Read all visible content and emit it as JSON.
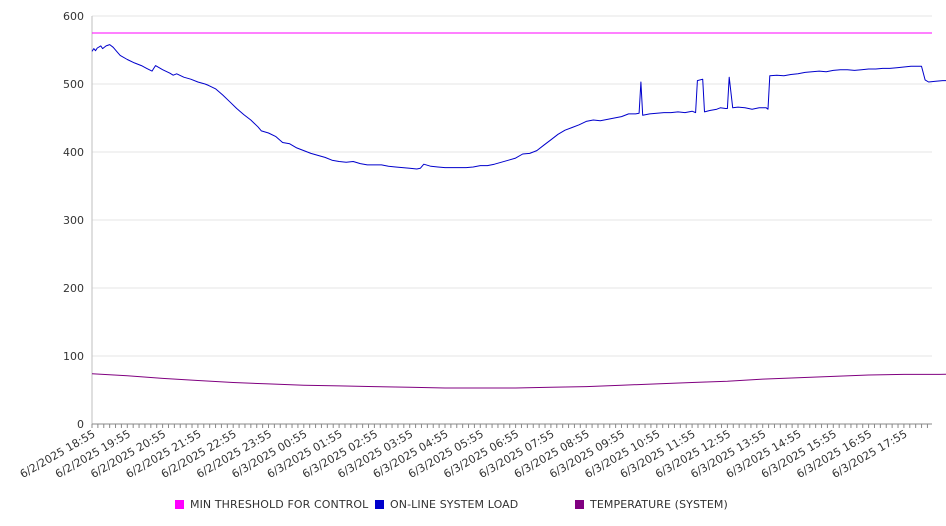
{
  "chart_data": {
    "type": "line",
    "title": "",
    "xlabel": "",
    "ylabel": "",
    "ylim": [
      0,
      600
    ],
    "yticks": [
      0,
      100,
      200,
      300,
      400,
      500,
      600
    ],
    "grid": "horizontal",
    "legend_position": "bottom",
    "x_tick_labels": [
      "6/2/2025 18:55",
      "6/2/2025 19:55",
      "6/2/2025 20:55",
      "6/2/2025 21:55",
      "6/2/2025 22:55",
      "6/2/2025 23:55",
      "6/3/2025 00:55",
      "6/3/2025 01:55",
      "6/3/2025 02:55",
      "6/3/2025 03:55",
      "6/3/2025 04:55",
      "6/3/2025 05:55",
      "6/3/2025 06:55",
      "6/3/2025 07:55",
      "6/3/2025 08:55",
      "6/3/2025 09:55",
      "6/3/2025 10:55",
      "6/3/2025 11:55",
      "6/3/2025 12:55",
      "6/3/2025 13:55",
      "6/3/2025 14:55",
      "6/3/2025 15:55",
      "6/3/2025 16:55",
      "6/3/2025 17:55"
    ],
    "series": [
      {
        "name": "MIN THRESHOLD FOR CONTROL",
        "color": "#ff00ff",
        "points": [
          [
            0,
            575
          ],
          [
            23.4,
            575
          ]
        ]
      },
      {
        "name": "ON-LINE SYSTEM LOAD",
        "color": "#0000cc",
        "points": [
          [
            0,
            548
          ],
          [
            0.05,
            552
          ],
          [
            0.1,
            549
          ],
          [
            0.15,
            553
          ],
          [
            0.25,
            556
          ],
          [
            0.3,
            552
          ],
          [
            0.4,
            556
          ],
          [
            0.5,
            558
          ],
          [
            0.6,
            554
          ],
          [
            0.7,
            548
          ],
          [
            0.8,
            542
          ],
          [
            1.0,
            536
          ],
          [
            1.2,
            531
          ],
          [
            1.4,
            527
          ],
          [
            1.55,
            523
          ],
          [
            1.7,
            519
          ],
          [
            1.8,
            527
          ],
          [
            2.0,
            521
          ],
          [
            2.2,
            516
          ],
          [
            2.3,
            513
          ],
          [
            2.4,
            515
          ],
          [
            2.6,
            510
          ],
          [
            2.8,
            507
          ],
          [
            3.0,
            503
          ],
          [
            3.2,
            500
          ],
          [
            3.3,
            498
          ],
          [
            3.5,
            493
          ],
          [
            3.7,
            484
          ],
          [
            3.9,
            474
          ],
          [
            4.1,
            464
          ],
          [
            4.3,
            455
          ],
          [
            4.5,
            447
          ],
          [
            4.7,
            437
          ],
          [
            4.8,
            431
          ],
          [
            5.0,
            428
          ],
          [
            5.2,
            423
          ],
          [
            5.4,
            414
          ],
          [
            5.6,
            412
          ],
          [
            5.8,
            406
          ],
          [
            6.0,
            402
          ],
          [
            6.2,
            398
          ],
          [
            6.4,
            395
          ],
          [
            6.6,
            392
          ],
          [
            6.8,
            388
          ],
          [
            7.0,
            386
          ],
          [
            7.2,
            385
          ],
          [
            7.4,
            386
          ],
          [
            7.6,
            383
          ],
          [
            7.8,
            381
          ],
          [
            8.0,
            381
          ],
          [
            8.2,
            381
          ],
          [
            8.4,
            379
          ],
          [
            8.6,
            378
          ],
          [
            8.8,
            377
          ],
          [
            9.0,
            376
          ],
          [
            9.2,
            375
          ],
          [
            9.3,
            376
          ],
          [
            9.4,
            382
          ],
          [
            9.6,
            379
          ],
          [
            9.8,
            378
          ],
          [
            10.0,
            377
          ],
          [
            10.2,
            377
          ],
          [
            10.4,
            377
          ],
          [
            10.6,
            377
          ],
          [
            10.8,
            378
          ],
          [
            11.0,
            380
          ],
          [
            11.2,
            380
          ],
          [
            11.4,
            382
          ],
          [
            11.6,
            385
          ],
          [
            11.8,
            388
          ],
          [
            12.0,
            391
          ],
          [
            12.2,
            397
          ],
          [
            12.4,
            398
          ],
          [
            12.6,
            402
          ],
          [
            12.8,
            410
          ],
          [
            13.0,
            418
          ],
          [
            13.2,
            426
          ],
          [
            13.4,
            432
          ],
          [
            13.6,
            436
          ],
          [
            13.8,
            440
          ],
          [
            14.0,
            445
          ],
          [
            14.2,
            447
          ],
          [
            14.4,
            446
          ],
          [
            14.6,
            448
          ],
          [
            14.8,
            450
          ],
          [
            15.0,
            452
          ],
          [
            15.2,
            456
          ],
          [
            15.4,
            456
          ],
          [
            15.5,
            457
          ],
          [
            15.55,
            503
          ],
          [
            15.6,
            454
          ],
          [
            15.8,
            456
          ],
          [
            16.0,
            457
          ],
          [
            16.2,
            458
          ],
          [
            16.4,
            458
          ],
          [
            16.6,
            459
          ],
          [
            16.8,
            458
          ],
          [
            17.0,
            460
          ],
          [
            17.1,
            458
          ],
          [
            17.15,
            505
          ],
          [
            17.3,
            507
          ],
          [
            17.35,
            459
          ],
          [
            17.5,
            461
          ],
          [
            17.7,
            463
          ],
          [
            17.8,
            465
          ],
          [
            17.95,
            464
          ],
          [
            18.0,
            464
          ],
          [
            18.05,
            510
          ],
          [
            18.15,
            465
          ],
          [
            18.3,
            466
          ],
          [
            18.5,
            465
          ],
          [
            18.7,
            463
          ],
          [
            18.9,
            465
          ],
          [
            19.1,
            465
          ],
          [
            19.15,
            463
          ],
          [
            19.2,
            512
          ],
          [
            19.4,
            513
          ],
          [
            19.6,
            512
          ],
          [
            19.8,
            514
          ],
          [
            20.0,
            515
          ],
          [
            20.2,
            517
          ],
          [
            20.4,
            518
          ],
          [
            20.6,
            519
          ],
          [
            20.8,
            518
          ],
          [
            21.0,
            520
          ],
          [
            21.2,
            521
          ],
          [
            21.4,
            521
          ],
          [
            21.6,
            520
          ],
          [
            21.8,
            521
          ],
          [
            22.0,
            522
          ],
          [
            22.2,
            522
          ],
          [
            22.4,
            523
          ],
          [
            22.6,
            523
          ],
          [
            22.8,
            524
          ],
          [
            23.0,
            525
          ],
          [
            23.2,
            526
          ],
          [
            23.4,
            526
          ],
          [
            23.5,
            526
          ],
          [
            23.6,
            506
          ],
          [
            23.7,
            503
          ],
          [
            23.9,
            504
          ],
          [
            24.1,
            505
          ],
          [
            24.3,
            505
          ],
          [
            24.5,
            505
          ],
          [
            24.7,
            505
          ],
          [
            24.9,
            508
          ],
          [
            25.1,
            511
          ],
          [
            25.3,
            513
          ],
          [
            25.5,
            514
          ],
          [
            25.7,
            515
          ],
          [
            25.8,
            517
          ],
          [
            25.9,
            513
          ],
          [
            26.1,
            515
          ],
          [
            26.3,
            516
          ],
          [
            26.5,
            515
          ],
          [
            26.7,
            515
          ],
          [
            26.9,
            514
          ],
          [
            27.0,
            514
          ]
        ]
      },
      {
        "name": "TEMPERATURE (SYSTEM)",
        "color": "#800080",
        "points": [
          [
            0,
            74
          ],
          [
            1,
            71
          ],
          [
            2,
            67
          ],
          [
            3,
            64
          ],
          [
            4,
            61
          ],
          [
            5,
            59
          ],
          [
            6,
            57
          ],
          [
            7,
            56
          ],
          [
            8,
            55
          ],
          [
            9,
            54
          ],
          [
            10,
            53
          ],
          [
            11,
            53
          ],
          [
            12,
            53
          ],
          [
            13,
            54
          ],
          [
            14,
            55
          ],
          [
            15,
            57
          ],
          [
            16,
            59
          ],
          [
            17,
            61
          ],
          [
            18,
            63
          ],
          [
            19,
            66
          ],
          [
            20,
            68
          ],
          [
            21,
            70
          ],
          [
            22,
            72
          ],
          [
            23,
            73
          ],
          [
            24,
            73
          ],
          [
            25,
            74
          ],
          [
            26,
            75
          ],
          [
            27,
            75
          ]
        ]
      }
    ]
  }
}
